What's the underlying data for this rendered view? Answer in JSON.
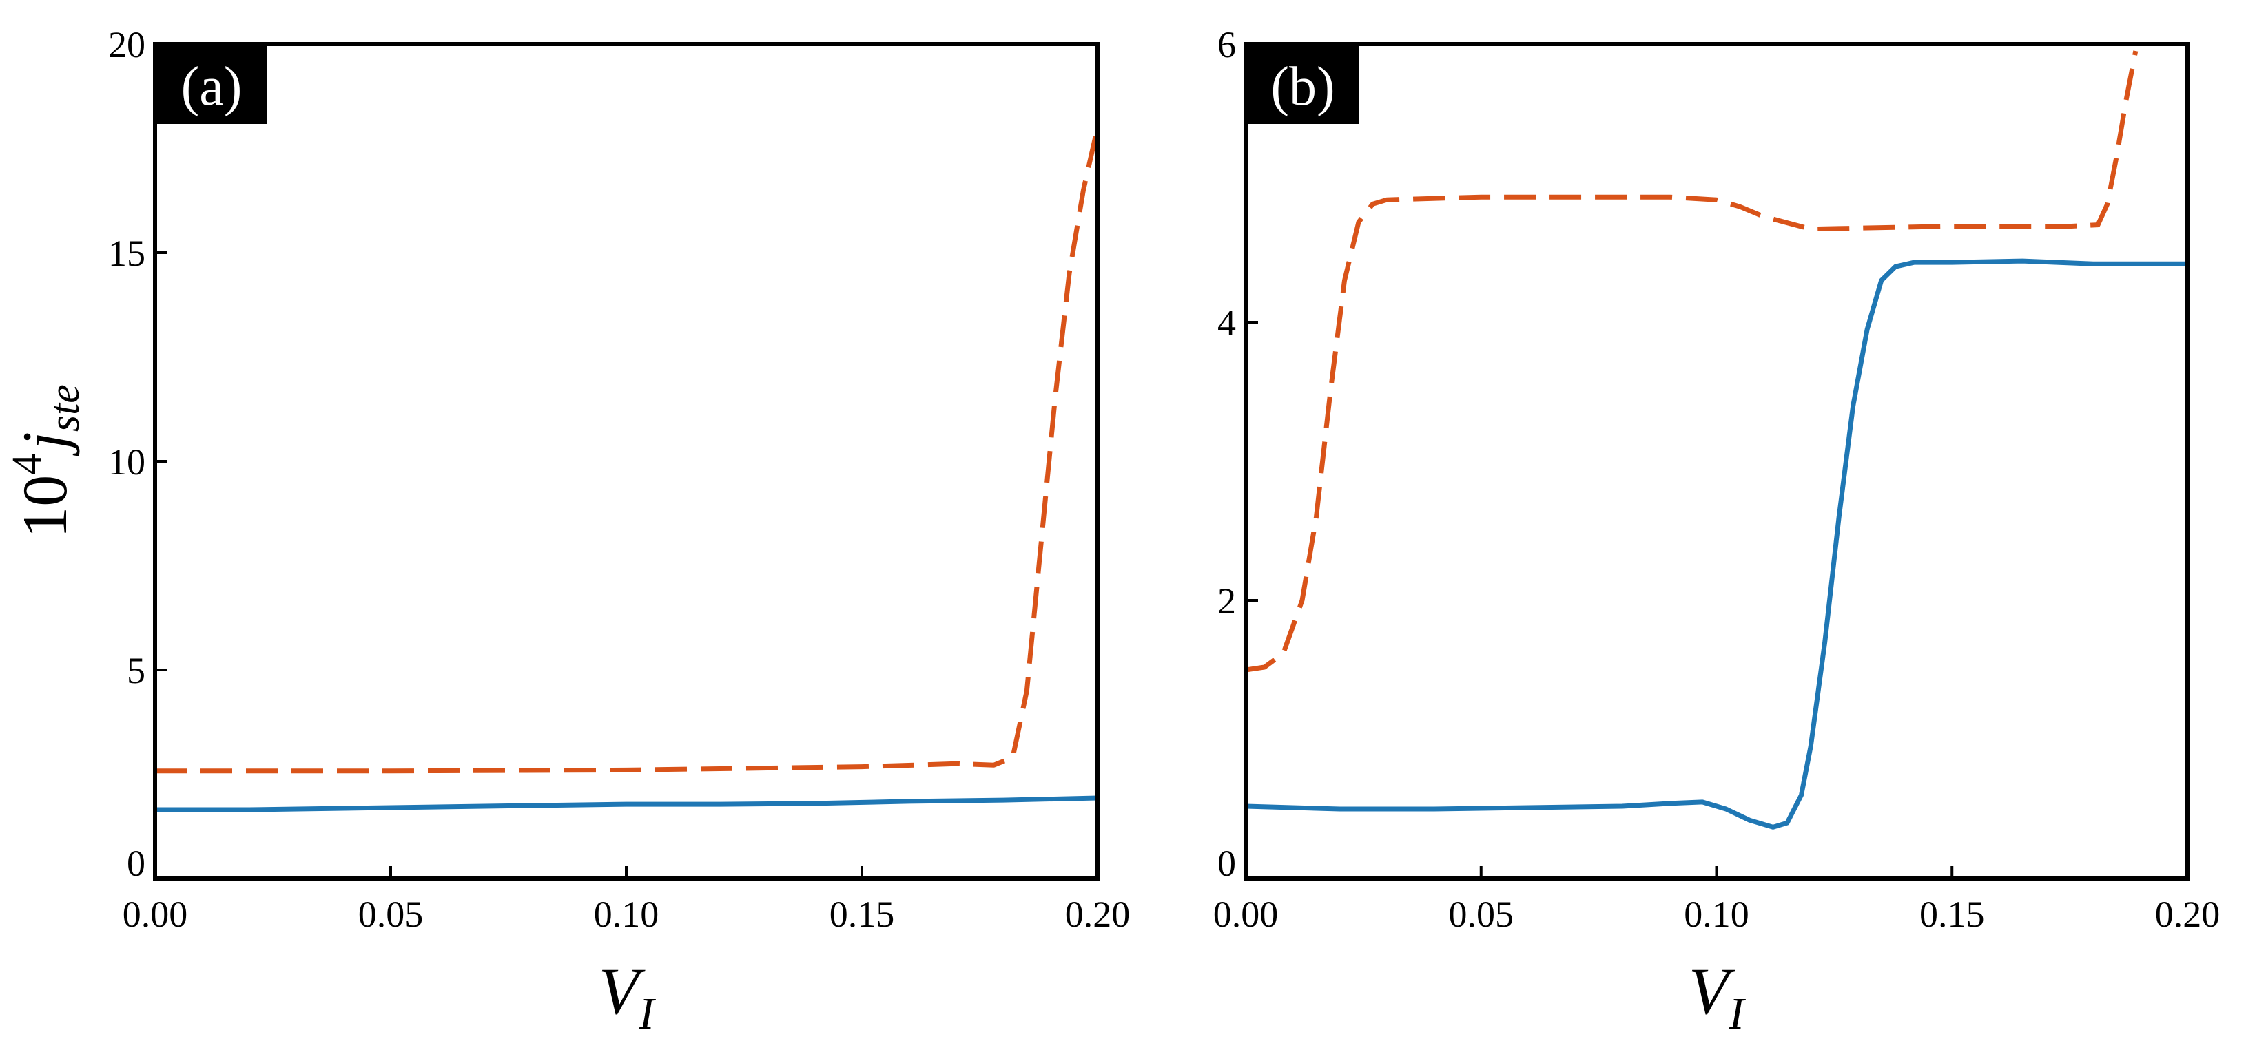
{
  "colors": {
    "series_solid": "#1f77b4",
    "series_dashed": "#d95319",
    "frame": "#000000",
    "tag_bg": "#000000"
  },
  "chart_data": [
    {
      "type": "line",
      "panel_label": "(a)",
      "xlabel": "V",
      "xlabel_sub": "I",
      "ylabel_prefix": "10",
      "ylabel_exp": "4",
      "ylabel_sym": "j",
      "ylabel_sub": "ste",
      "xlim": [
        0,
        0.2
      ],
      "ylim": [
        0,
        20
      ],
      "xticks": [
        0,
        0.05,
        0.1,
        0.15,
        0.2
      ],
      "xtick_labels": [
        "0.00",
        "0.05",
        "0.10",
        "0.15",
        "0.20"
      ],
      "yticks": [
        0,
        5,
        10,
        15,
        20
      ],
      "ytick_labels": [
        "0",
        "5",
        "10",
        "15",
        "20"
      ],
      "series": [
        {
          "name": "solid",
          "style": "solid",
          "x": [
            0,
            0.02,
            0.05,
            0.08,
            0.1,
            0.12,
            0.14,
            0.16,
            0.18,
            0.2
          ],
          "y": [
            1.65,
            1.65,
            1.7,
            1.75,
            1.78,
            1.78,
            1.8,
            1.85,
            1.88,
            1.93
          ]
        },
        {
          "name": "dashed",
          "style": "dashed",
          "x": [
            0,
            0.05,
            0.1,
            0.15,
            0.17,
            0.178,
            0.182,
            0.185,
            0.188,
            0.191,
            0.194,
            0.197,
            0.2
          ],
          "y": [
            2.58,
            2.58,
            2.6,
            2.68,
            2.75,
            2.72,
            2.9,
            4.5,
            8.0,
            11.5,
            14.5,
            16.5,
            18.0
          ]
        }
      ]
    },
    {
      "type": "line",
      "panel_label": "(b)",
      "xlabel": "V",
      "xlabel_sub": "I",
      "xlim": [
        0,
        0.2
      ],
      "ylim": [
        0,
        6
      ],
      "xticks": [
        0,
        0.05,
        0.1,
        0.15,
        0.2
      ],
      "xtick_labels": [
        "0.00",
        "0.05",
        "0.10",
        "0.15",
        "0.20"
      ],
      "yticks": [
        0,
        2,
        4,
        6
      ],
      "ytick_labels": [
        "0",
        "2",
        "4",
        "6"
      ],
      "series": [
        {
          "name": "solid",
          "style": "solid",
          "x": [
            0,
            0.02,
            0.04,
            0.06,
            0.08,
            0.09,
            0.097,
            0.102,
            0.107,
            0.112,
            0.115,
            0.118,
            0.12,
            0.123,
            0.126,
            0.129,
            0.132,
            0.135,
            0.138,
            0.142,
            0.15,
            0.165,
            0.18,
            0.2
          ],
          "y": [
            0.52,
            0.5,
            0.5,
            0.51,
            0.52,
            0.54,
            0.55,
            0.5,
            0.42,
            0.37,
            0.4,
            0.6,
            0.95,
            1.7,
            2.6,
            3.4,
            3.95,
            4.3,
            4.4,
            4.43,
            4.43,
            4.44,
            4.42,
            4.42
          ]
        },
        {
          "name": "dashed",
          "style": "dashed",
          "x": [
            0,
            0.004,
            0.008,
            0.012,
            0.015,
            0.018,
            0.021,
            0.024,
            0.027,
            0.03,
            0.05,
            0.07,
            0.09,
            0.1,
            0.105,
            0.11,
            0.12,
            0.15,
            0.175,
            0.181,
            0.183,
            0.185,
            0.187,
            0.189
          ],
          "y": [
            1.5,
            1.52,
            1.62,
            2.0,
            2.6,
            3.5,
            4.3,
            4.72,
            4.85,
            4.88,
            4.9,
            4.9,
            4.9,
            4.88,
            4.83,
            4.76,
            4.67,
            4.69,
            4.69,
            4.7,
            4.85,
            5.2,
            5.6,
            5.95
          ]
        }
      ]
    }
  ]
}
